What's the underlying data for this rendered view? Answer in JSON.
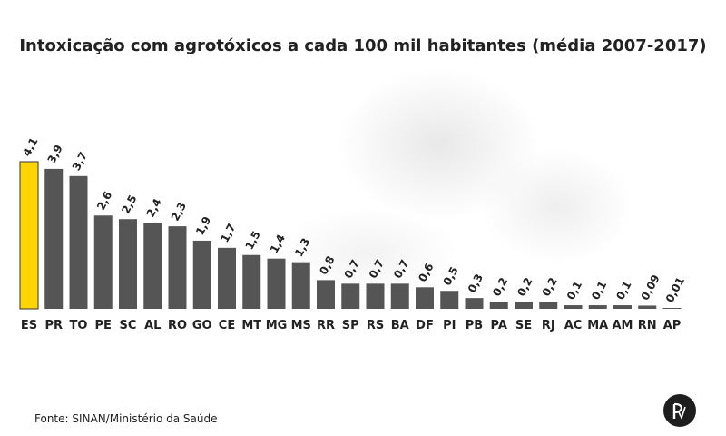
{
  "chart_data": {
    "type": "bar",
    "title": "Intoxicação com agrotóxicos a cada 100 mil habitantes (média 2007-2017)",
    "categories": [
      "ES",
      "PR",
      "TO",
      "PE",
      "SC",
      "AL",
      "RO",
      "GO",
      "CE",
      "MT",
      "MG",
      "MS",
      "RR",
      "SP",
      "RS",
      "BA",
      "DF",
      "PI",
      "PB",
      "PA",
      "SE",
      "RJ",
      "AC",
      "MA",
      "AM",
      "RN",
      "AP"
    ],
    "values": [
      4.1,
      3.9,
      3.7,
      2.6,
      2.5,
      2.4,
      2.3,
      1.9,
      1.7,
      1.5,
      1.4,
      1.3,
      0.8,
      0.7,
      0.7,
      0.7,
      0.6,
      0.5,
      0.3,
      0.2,
      0.2,
      0.2,
      0.1,
      0.1,
      0.1,
      0.09,
      0.01
    ],
    "value_labels": [
      "4,1",
      "3,9",
      "3,7",
      "2,6",
      "2,5",
      "2,4",
      "2,3",
      "1,9",
      "1,7",
      "1,5",
      "1,4",
      "1,3",
      "0,8",
      "0,7",
      "0,7",
      "0,7",
      "0,6",
      "0,5",
      "0,3",
      "0,2",
      "0,2",
      "0,2",
      "0,1",
      "0,1",
      "0,1",
      "0,09",
      "0,01"
    ],
    "highlight_index": 0,
    "colors": {
      "bar": "#555555",
      "highlight": "#ffd400",
      "highlight_border": "#333333",
      "text": "#222222"
    },
    "ylim": [
      0,
      4.1
    ],
    "grid": false,
    "legend": "none"
  },
  "source": "Fonte: SINAN/Ministério da Saúde",
  "logo": {
    "icon": "pv-logo-icon"
  }
}
